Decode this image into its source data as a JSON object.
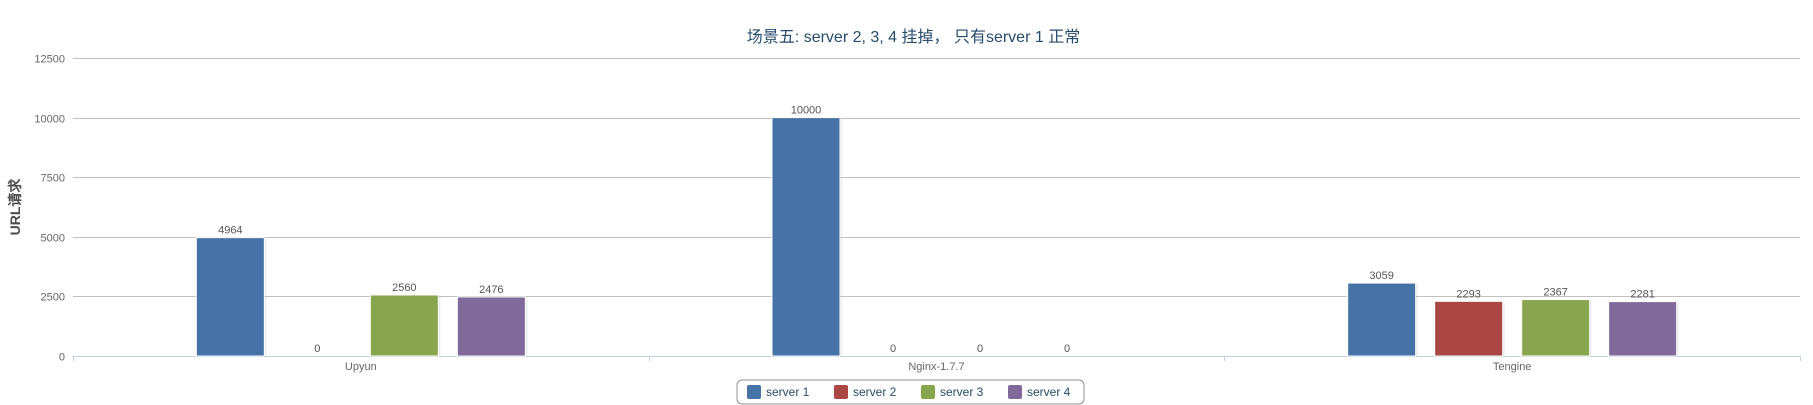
{
  "chart_data": {
    "type": "bar",
    "title": "场景五: server 2, 3, 4 挂掉， 只有server 1 正常",
    "ylabel": "URL请求",
    "xlabel": "",
    "categories": [
      "Upyun",
      "Nginx-1.7.7",
      "Tengine"
    ],
    "series": [
      {
        "name": "server 1",
        "color": "#4572a7",
        "values": [
          4964,
          10000,
          3059
        ]
      },
      {
        "name": "server 2",
        "color": "#aa4643",
        "values": [
          0,
          0,
          2293
        ]
      },
      {
        "name": "server 3",
        "color": "#89a54e",
        "values": [
          2560,
          0,
          2367
        ]
      },
      {
        "name": "server 4",
        "color": "#80699b",
        "values": [
          2476,
          0,
          2281
        ]
      }
    ],
    "ylim": [
      0,
      12500
    ],
    "yticks": [
      0,
      2500,
      5000,
      7500,
      10000,
      12500
    ],
    "grid": true,
    "legend_position": "bottom-center"
  }
}
